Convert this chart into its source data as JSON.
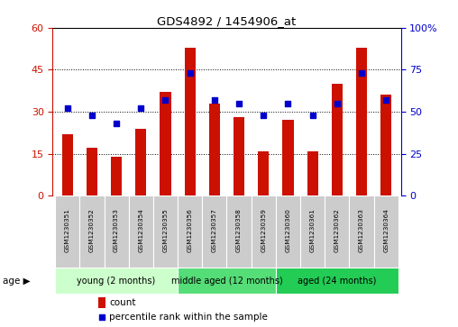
{
  "title": "GDS4892 / 1454906_at",
  "samples": [
    "GSM1230351",
    "GSM1230352",
    "GSM1230353",
    "GSM1230354",
    "GSM1230355",
    "GSM1230356",
    "GSM1230357",
    "GSM1230358",
    "GSM1230359",
    "GSM1230360",
    "GSM1230361",
    "GSM1230362",
    "GSM1230363",
    "GSM1230364"
  ],
  "counts": [
    22,
    17,
    14,
    24,
    37,
    53,
    33,
    28,
    16,
    27,
    16,
    40,
    53,
    36
  ],
  "percentiles": [
    52,
    48,
    43,
    52,
    57,
    73,
    57,
    55,
    48,
    55,
    48,
    55,
    73,
    57
  ],
  "ylim_left": [
    0,
    60
  ],
  "ylim_right": [
    0,
    100
  ],
  "yticks_left": [
    0,
    15,
    30,
    45,
    60
  ],
  "yticks_right": [
    0,
    25,
    50,
    75,
    100
  ],
  "ytick_labels_right": [
    "0",
    "25",
    "50",
    "75",
    "100%"
  ],
  "bar_color": "#cc1100",
  "dot_color": "#0000cc",
  "groups": [
    {
      "label": "young (2 months)",
      "start": 0,
      "end": 5,
      "color": "#ccffcc"
    },
    {
      "label": "middle aged (12 months)",
      "start": 5,
      "end": 9,
      "color": "#55dd77"
    },
    {
      "label": "aged (24 months)",
      "start": 9,
      "end": 14,
      "color": "#22cc55"
    }
  ],
  "age_label": "age ▶",
  "legend_count": "count",
  "legend_percentile": "percentile rank within the sample",
  "tick_label_color_left": "#cc1100",
  "tick_label_color_right": "#0000cc",
  "bar_width": 0.45,
  "dot_size": 22,
  "sample_box_color": "#cccccc",
  "plot_bg": "#ffffff",
  "spine_color": "#000000"
}
